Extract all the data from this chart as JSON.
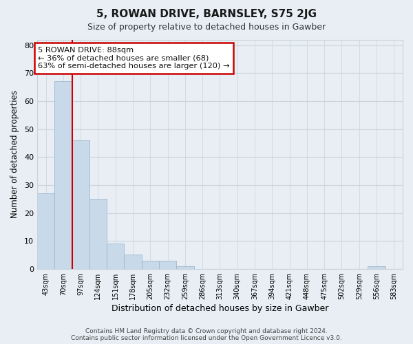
{
  "title": "5, ROWAN DRIVE, BARNSLEY, S75 2JG",
  "subtitle": "Size of property relative to detached houses in Gawber",
  "xlabel": "Distribution of detached houses by size in Gawber",
  "ylabel": "Number of detached properties",
  "bar_labels": [
    "43sqm",
    "70sqm",
    "97sqm",
    "124sqm",
    "151sqm",
    "178sqm",
    "205sqm",
    "232sqm",
    "259sqm",
    "286sqm",
    "313sqm",
    "340sqm",
    "367sqm",
    "394sqm",
    "421sqm",
    "448sqm",
    "475sqm",
    "502sqm",
    "529sqm",
    "556sqm",
    "583sqm"
  ],
  "bar_values": [
    27,
    67,
    46,
    25,
    9,
    5,
    3,
    3,
    1,
    0,
    0,
    0,
    0,
    0,
    0,
    0,
    0,
    0,
    0,
    1,
    0
  ],
  "bar_color": "#c8d9ea",
  "bar_edge_color": "#9db8cc",
  "ylim": [
    0,
    82
  ],
  "yticks": [
    0,
    10,
    20,
    30,
    40,
    50,
    60,
    70,
    80
  ],
  "vline_x": 1.5,
  "vline_color": "#cc0000",
  "annotation_text": "5 ROWAN DRIVE: 88sqm\n← 36% of detached houses are smaller (68)\n63% of semi-detached houses are larger (120) →",
  "annotation_box_color": "#ffffff",
  "annotation_box_edge": "#cc0000",
  "footer_line1": "Contains HM Land Registry data © Crown copyright and database right 2024.",
  "footer_line2": "Contains public sector information licensed under the Open Government Licence v3.0.",
  "background_color": "#e8eef4",
  "plot_bg_color": "#e8eef4",
  "grid_color": "#c8d4dc"
}
